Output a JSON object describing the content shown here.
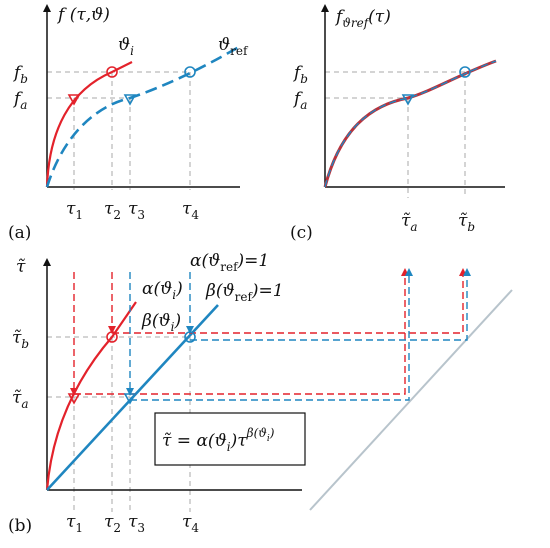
{
  "panel_a": {
    "tag": "(a)",
    "y_axis": "f (τ,ϑ)",
    "curve_i": {
      "base": "ϑ",
      "sub": "i"
    },
    "curve_ref": {
      "base": "ϑ",
      "sub": "ref"
    },
    "y_labels": [
      {
        "base": "f",
        "sub": "b"
      },
      {
        "base": "f",
        "sub": "a"
      }
    ],
    "x_labels": [
      {
        "base": "τ",
        "sub": "1"
      },
      {
        "base": "τ",
        "sub": "2"
      },
      {
        "base": "τ",
        "sub": "3"
      },
      {
        "base": "τ",
        "sub": "4"
      }
    ]
  },
  "panel_c": {
    "tag": "(c)",
    "y_axis": {
      "base": "f",
      "sub": "ϑref",
      "after": "(τ)"
    },
    "y_labels": [
      {
        "base": "f",
        "sub": "b"
      },
      {
        "base": "f",
        "sub": "a"
      }
    ],
    "x_labels": [
      {
        "base": "τ̃",
        "sub": "a"
      },
      {
        "base": "τ̃",
        "sub": "b"
      }
    ]
  },
  "panel_b": {
    "tag": "(b)",
    "y_axis": "τ̃",
    "alpha_i": {
      "pre": "α(ϑ",
      "sub": "i",
      "post": ")"
    },
    "beta_i": {
      "pre": "β(ϑ",
      "sub": "i",
      "post": ")"
    },
    "alpha_ref": {
      "pre": "α(ϑ",
      "sub": "ref",
      "post": ")=1"
    },
    "beta_ref": {
      "pre": "β(ϑ",
      "sub": "ref",
      "post": ")=1"
    },
    "y_labels": [
      {
        "base": "τ̃",
        "sub": "b"
      },
      {
        "base": "τ̃",
        "sub": "a"
      }
    ],
    "x_labels": [
      {
        "base": "τ",
        "sub": "1"
      },
      {
        "base": "τ",
        "sub": "2"
      },
      {
        "base": "τ",
        "sub": "3"
      },
      {
        "base": "τ",
        "sub": "4"
      }
    ],
    "formula": {
      "pre": "τ̃ = α(ϑ",
      "sub": "i",
      "mid": ")τ",
      "sup_pre": "β(ϑ",
      "sup_sub": "i",
      "sup_post": ")"
    }
  }
}
